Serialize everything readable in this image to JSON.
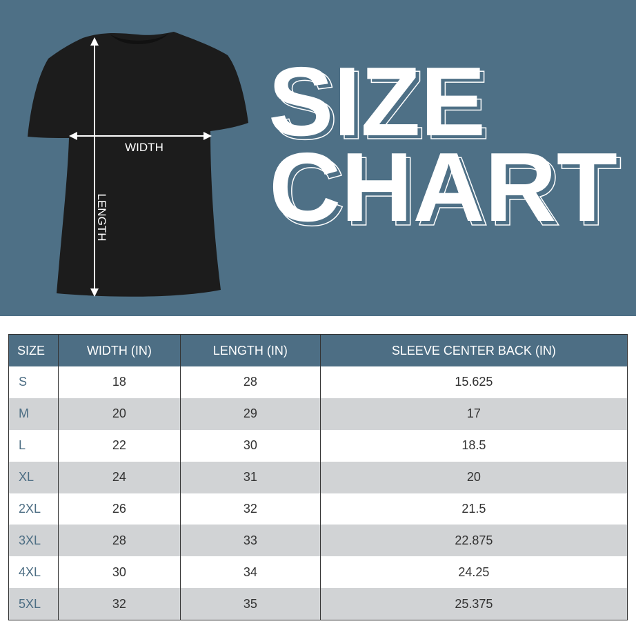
{
  "title_line1": "SIZE",
  "title_line2": "CHART",
  "diagram": {
    "width_label": "WIDTH",
    "length_label": "LENGTH"
  },
  "colors": {
    "brand_blue": "#4e7086",
    "alt_row": "#d1d3d5",
    "shirt": "#1c1c1c"
  },
  "chart_data": {
    "type": "table",
    "columns": [
      "SIZE",
      "WIDTH (IN)",
      "LENGTH (IN)",
      "SLEEVE CENTER BACK (IN)"
    ],
    "rows": [
      [
        "S",
        "18",
        "28",
        "15.625"
      ],
      [
        "M",
        "20",
        "29",
        "17"
      ],
      [
        "L",
        "22",
        "30",
        "18.5"
      ],
      [
        "XL",
        "24",
        "31",
        "20"
      ],
      [
        "2XL",
        "26",
        "32",
        "21.5"
      ],
      [
        "3XL",
        "28",
        "33",
        "22.875"
      ],
      [
        "4XL",
        "30",
        "34",
        "24.25"
      ],
      [
        "5XL",
        "32",
        "35",
        "25.375"
      ]
    ]
  }
}
